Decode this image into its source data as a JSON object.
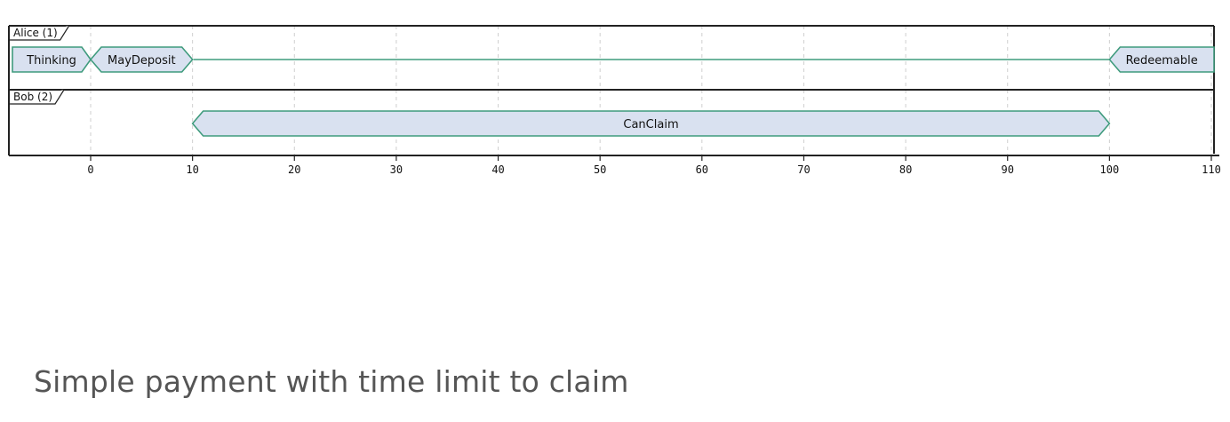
{
  "diagram": {
    "type": "timing",
    "axis": {
      "min": 0,
      "max": 110,
      "ticks": [
        0,
        10,
        20,
        30,
        40,
        50,
        60,
        70,
        80,
        90,
        100,
        110
      ]
    },
    "lanes": [
      {
        "name": "Alice (1)",
        "states": [
          {
            "label": "Thinking",
            "start": null,
            "end": 0
          },
          {
            "label": "MayDeposit",
            "start": 0,
            "end": 10
          },
          {
            "label": "",
            "start": 10,
            "end": 100
          },
          {
            "label": "Redeemable",
            "start": 100,
            "end": null
          }
        ]
      },
      {
        "name": "Bob (2)",
        "states": [
          {
            "label": "CanClaim",
            "start": 10,
            "end": 100
          }
        ]
      }
    ],
    "colors": {
      "state_fill": "#d9e1f0",
      "state_stroke": "#3f9b7d",
      "frame": "#222222",
      "grid": "#cfcfcf"
    }
  },
  "caption": "Simple payment with time limit to claim"
}
